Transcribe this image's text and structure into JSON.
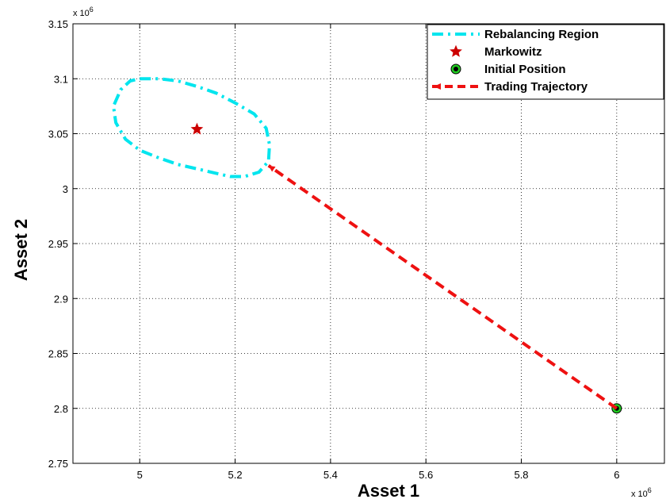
{
  "chart_data": {
    "type": "line",
    "xlabel": "Asset 1",
    "ylabel": "Asset 2",
    "x_multiplier": "x 10",
    "x_multiplier_exp": "6",
    "y_multiplier": "x 10",
    "y_multiplier_exp": "6",
    "xlim": [
      4.86,
      6.1
    ],
    "ylim": [
      2.75,
      3.15
    ],
    "xticks": [
      5,
      5.2,
      5.4,
      5.6,
      5.8,
      6
    ],
    "xtick_labels": [
      "5",
      "5.2",
      "5.4",
      "5.6",
      "5.8",
      "6"
    ],
    "yticks": [
      2.75,
      2.8,
      2.85,
      2.9,
      2.95,
      3,
      3.05,
      3.1,
      3.15
    ],
    "ytick_labels": [
      "2.75",
      "2.8",
      "2.85",
      "2.9",
      "2.95",
      "3",
      "3.05",
      "3.1",
      "3.15"
    ],
    "grid": true,
    "legend_position": "top-right",
    "series": [
      {
        "name": "Rebalancing Region",
        "kind": "closed-curve",
        "style": "dash-dot",
        "color": "#00e5ee",
        "x": [
          5.0,
          5.04,
          5.08,
          5.12,
          5.16,
          5.2,
          5.24,
          5.265,
          5.272,
          5.27,
          5.25,
          5.22,
          5.19,
          5.16,
          5.12,
          5.08,
          5.04,
          5.0,
          4.97,
          4.95,
          4.945,
          4.96,
          4.98,
          5.0
        ],
        "y": [
          3.1,
          3.1,
          3.098,
          3.093,
          3.087,
          3.078,
          3.068,
          3.055,
          3.04,
          3.025,
          3.015,
          3.011,
          3.011,
          3.014,
          3.018,
          3.022,
          3.028,
          3.035,
          3.045,
          3.06,
          3.075,
          3.09,
          3.098,
          3.1
        ]
      },
      {
        "name": "Markowitz",
        "kind": "marker",
        "marker": "star",
        "color": "#cc0000",
        "x": [
          5.12
        ],
        "y": [
          3.054
        ]
      },
      {
        "name": "Initial Position",
        "kind": "marker",
        "marker": "circle",
        "color": "#22cc22",
        "x": [
          6.0
        ],
        "y": [
          2.8
        ]
      },
      {
        "name": "Trading Trajectory",
        "kind": "line",
        "style": "dashed",
        "color": "#ee1111",
        "x": [
          6.0,
          5.27
        ],
        "y": [
          2.8,
          3.021
        ]
      }
    ]
  }
}
